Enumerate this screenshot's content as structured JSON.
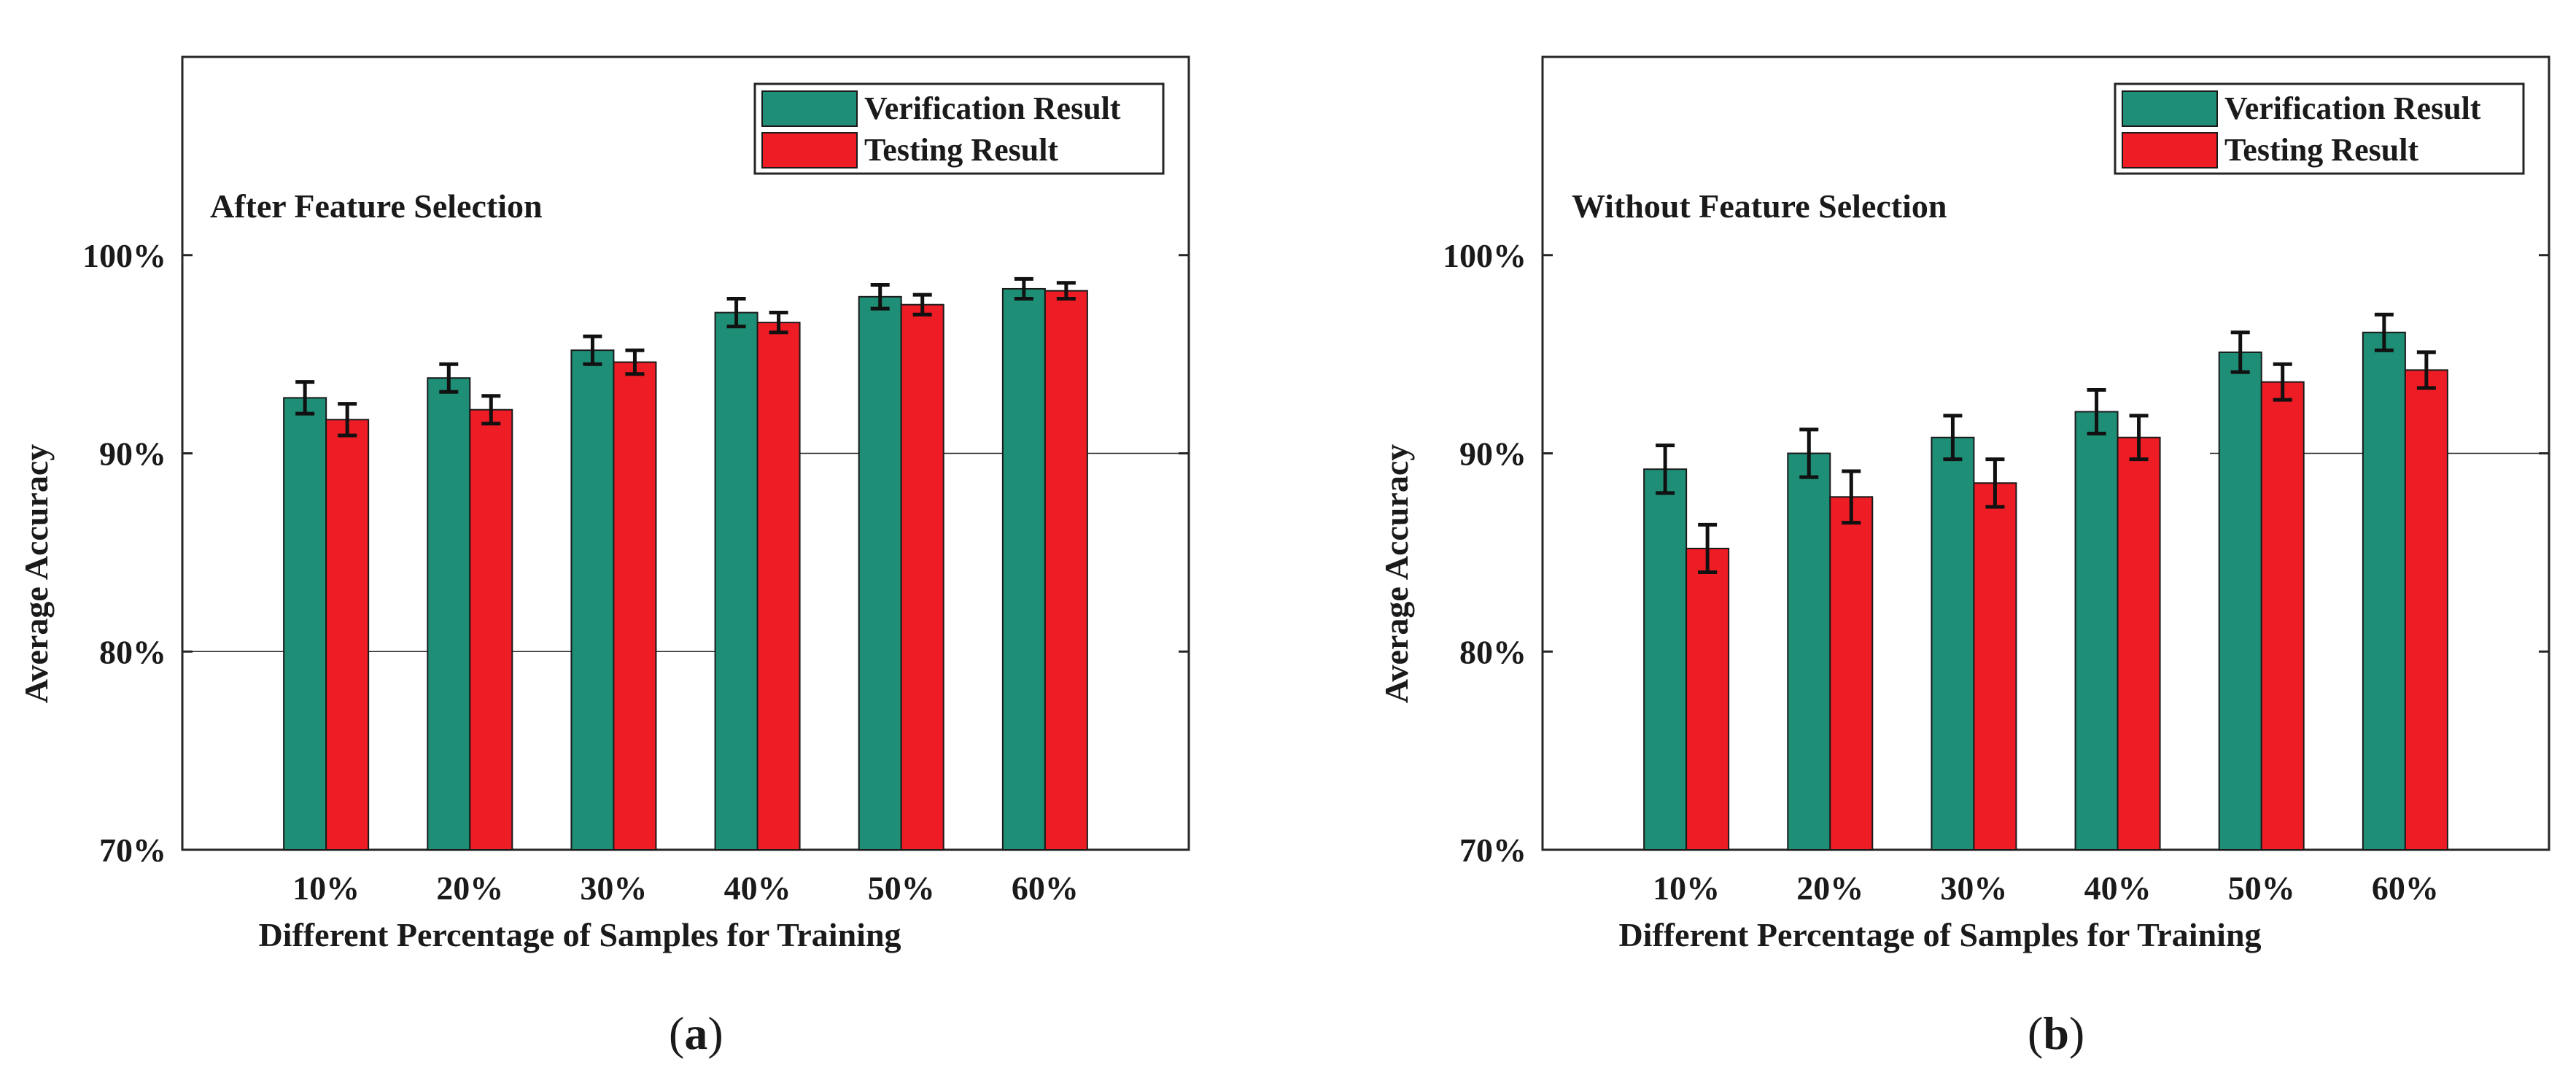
{
  "chart_data": [
    {
      "type": "bar",
      "panel_label": "(a)",
      "panel_letter": "a",
      "annotation": "After Feature Selection",
      "categories": [
        "10%",
        "20%",
        "30%",
        "40%",
        "50%",
        "60%"
      ],
      "series": [
        {
          "name": "Verification Result",
          "color": "#1e8f76",
          "values": [
            92.8,
            93.8,
            95.2,
            97.1,
            97.9,
            98.3
          ],
          "errors": [
            0.8,
            0.7,
            0.7,
            0.7,
            0.6,
            0.5
          ]
        },
        {
          "name": "Testing  Result",
          "color": "#ee1c25",
          "values": [
            91.7,
            92.2,
            94.6,
            96.6,
            97.5,
            98.2
          ],
          "errors": [
            0.8,
            0.7,
            0.6,
            0.5,
            0.5,
            0.4
          ]
        }
      ],
      "xlabel": "Different Percentage of Samples for Training",
      "ylabel": "Average Accuracy",
      "ylim": [
        70,
        110
      ],
      "yticks": [
        70,
        80,
        90,
        100
      ],
      "ytick_labels": [
        "70%",
        "80%",
        "90%",
        "100%"
      ],
      "grid": "horizontal lines at 80% and 90%",
      "legend": "top-right"
    },
    {
      "type": "bar",
      "panel_label": "(b)",
      "panel_letter": "b",
      "annotation": "Without Feature Selection",
      "categories": [
        "10%",
        "20%",
        "30%",
        "40%",
        "50%",
        "60%"
      ],
      "series": [
        {
          "name": "Verification Result",
          "color": "#1e8f76",
          "values": [
            89.2,
            90.0,
            90.8,
            92.1,
            95.1,
            96.1
          ],
          "errors": [
            1.2,
            1.2,
            1.1,
            1.1,
            1.0,
            0.9
          ]
        },
        {
          "name": "Testing  Result",
          "color": "#ee1c25",
          "values": [
            85.2,
            87.8,
            88.5,
            90.8,
            93.6,
            94.2
          ],
          "errors": [
            1.2,
            1.3,
            1.2,
            1.1,
            0.9,
            0.9
          ]
        }
      ],
      "xlabel": "Different Percentage of Samples for Training",
      "ylabel": "Average Accuracy",
      "ylim": [
        70,
        110
      ],
      "yticks": [
        70,
        80,
        90,
        100
      ],
      "ytick_labels": [
        "70%",
        "80%",
        "90%",
        "100%"
      ],
      "grid": "horizontal line at 90%",
      "legend": "top-right"
    }
  ]
}
